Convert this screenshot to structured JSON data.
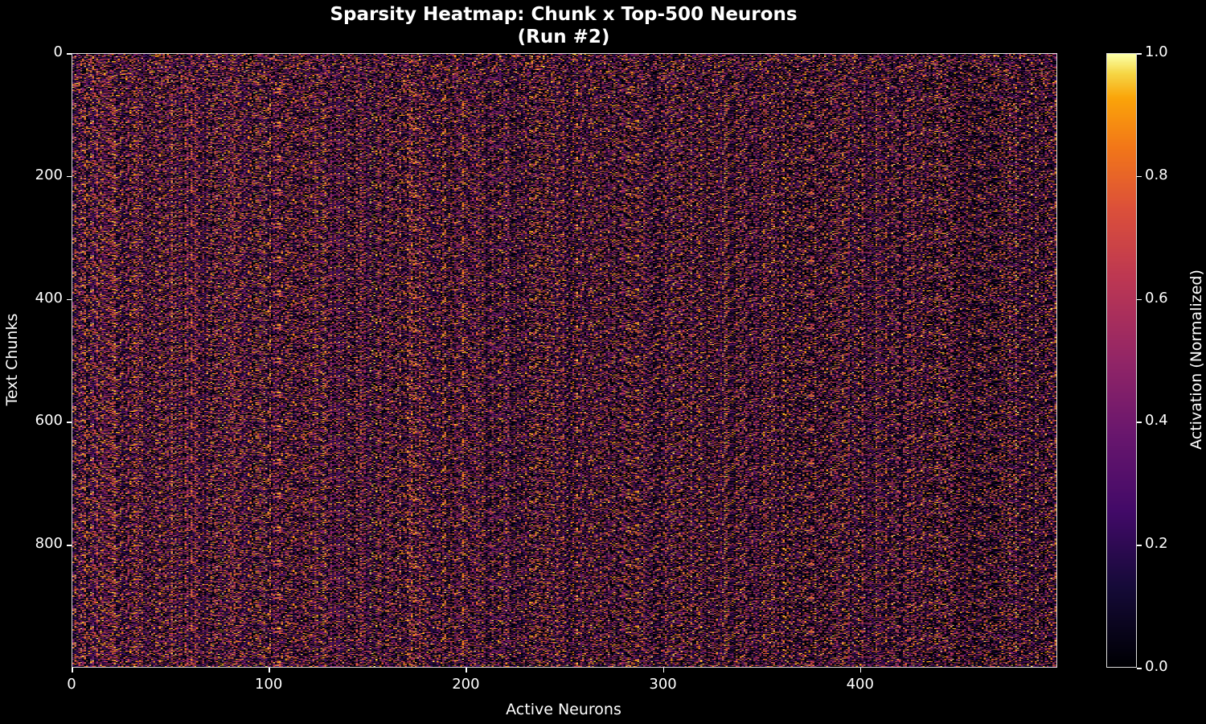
{
  "chart_data": {
    "type": "heatmap",
    "title": "Sparsity Heatmap: Chunk x Top-500 Neurons",
    "subtitle": "(Run #2)",
    "xlabel": "Active Neurons",
    "ylabel": "Text Chunks",
    "rows": 1000,
    "cols": 500,
    "xlim": [
      0,
      500
    ],
    "ylim": [
      1000,
      0
    ],
    "x_ticks": [
      0,
      100,
      200,
      300,
      400
    ],
    "y_ticks": [
      0,
      200,
      400,
      600,
      800
    ],
    "colormap": "inferno",
    "colorbar": {
      "label": "Activation (Normalized)",
      "range": [
        0.0,
        1.0
      ],
      "ticks": [
        "0.0",
        "0.2",
        "0.4",
        "0.6",
        "0.8",
        "1.0"
      ]
    },
    "values_description_note": null,
    "grid": false
  }
}
